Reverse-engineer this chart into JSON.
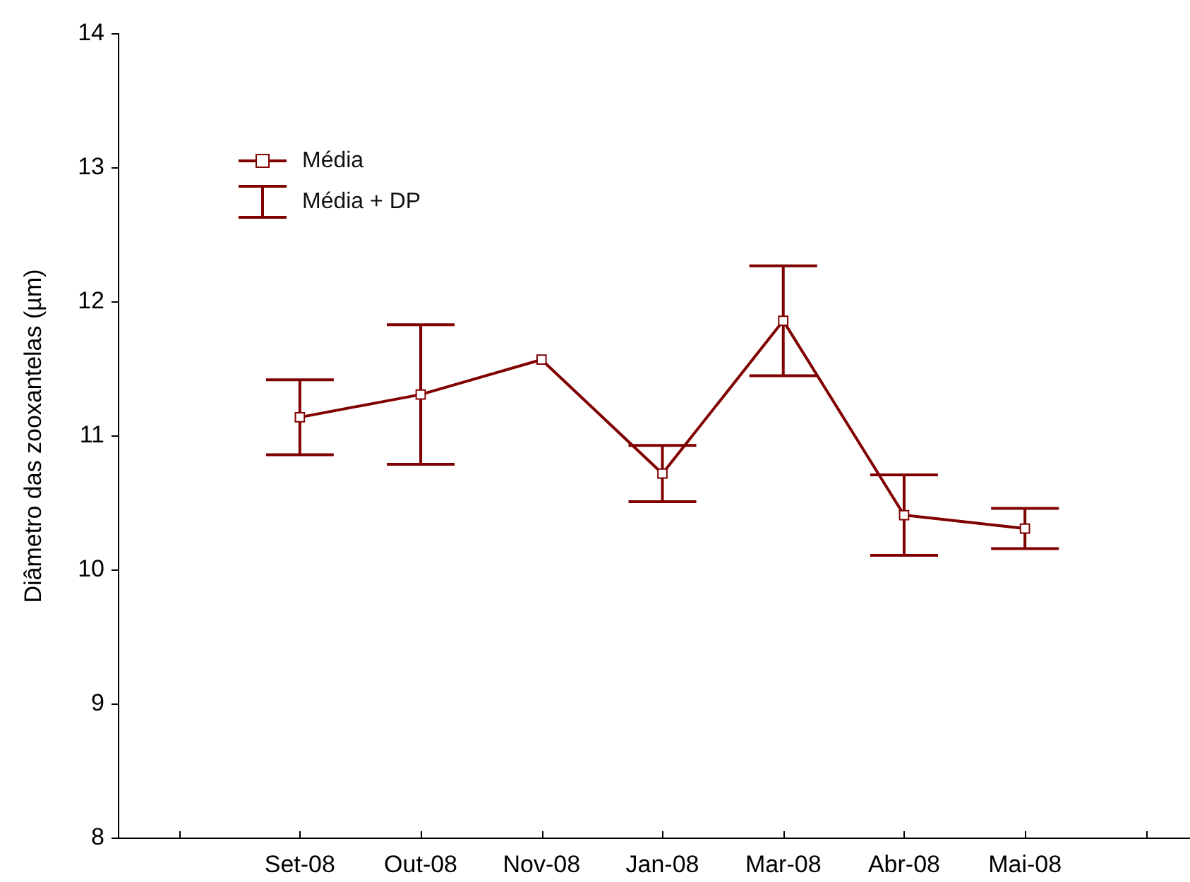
{
  "chart_data": {
    "type": "line",
    "ylabel": "Diâmetro das zooxantelas (µm)",
    "categories": [
      null,
      "Set-08",
      "Out-08",
      "Nov-08",
      "Jan-08",
      "Mar-08",
      "Abr-08",
      "Mai-08",
      null
    ],
    "series": [
      {
        "name": "Média",
        "color": "#800000",
        "values": [
          null,
          11.14,
          11.31,
          11.57,
          10.72,
          11.86,
          10.41,
          10.31,
          null
        ],
        "errors": [
          null,
          0.28,
          0.52,
          null,
          0.21,
          0.41,
          0.3,
          0.15,
          null
        ]
      }
    ],
    "ylim": [
      8,
      14
    ],
    "yticks": [
      8,
      9,
      10,
      11,
      12,
      13,
      14
    ],
    "grid": false,
    "legend": "top left",
    "marker": "square",
    "line_style": "solid",
    "annotations": [
      "Média + DP"
    ]
  }
}
